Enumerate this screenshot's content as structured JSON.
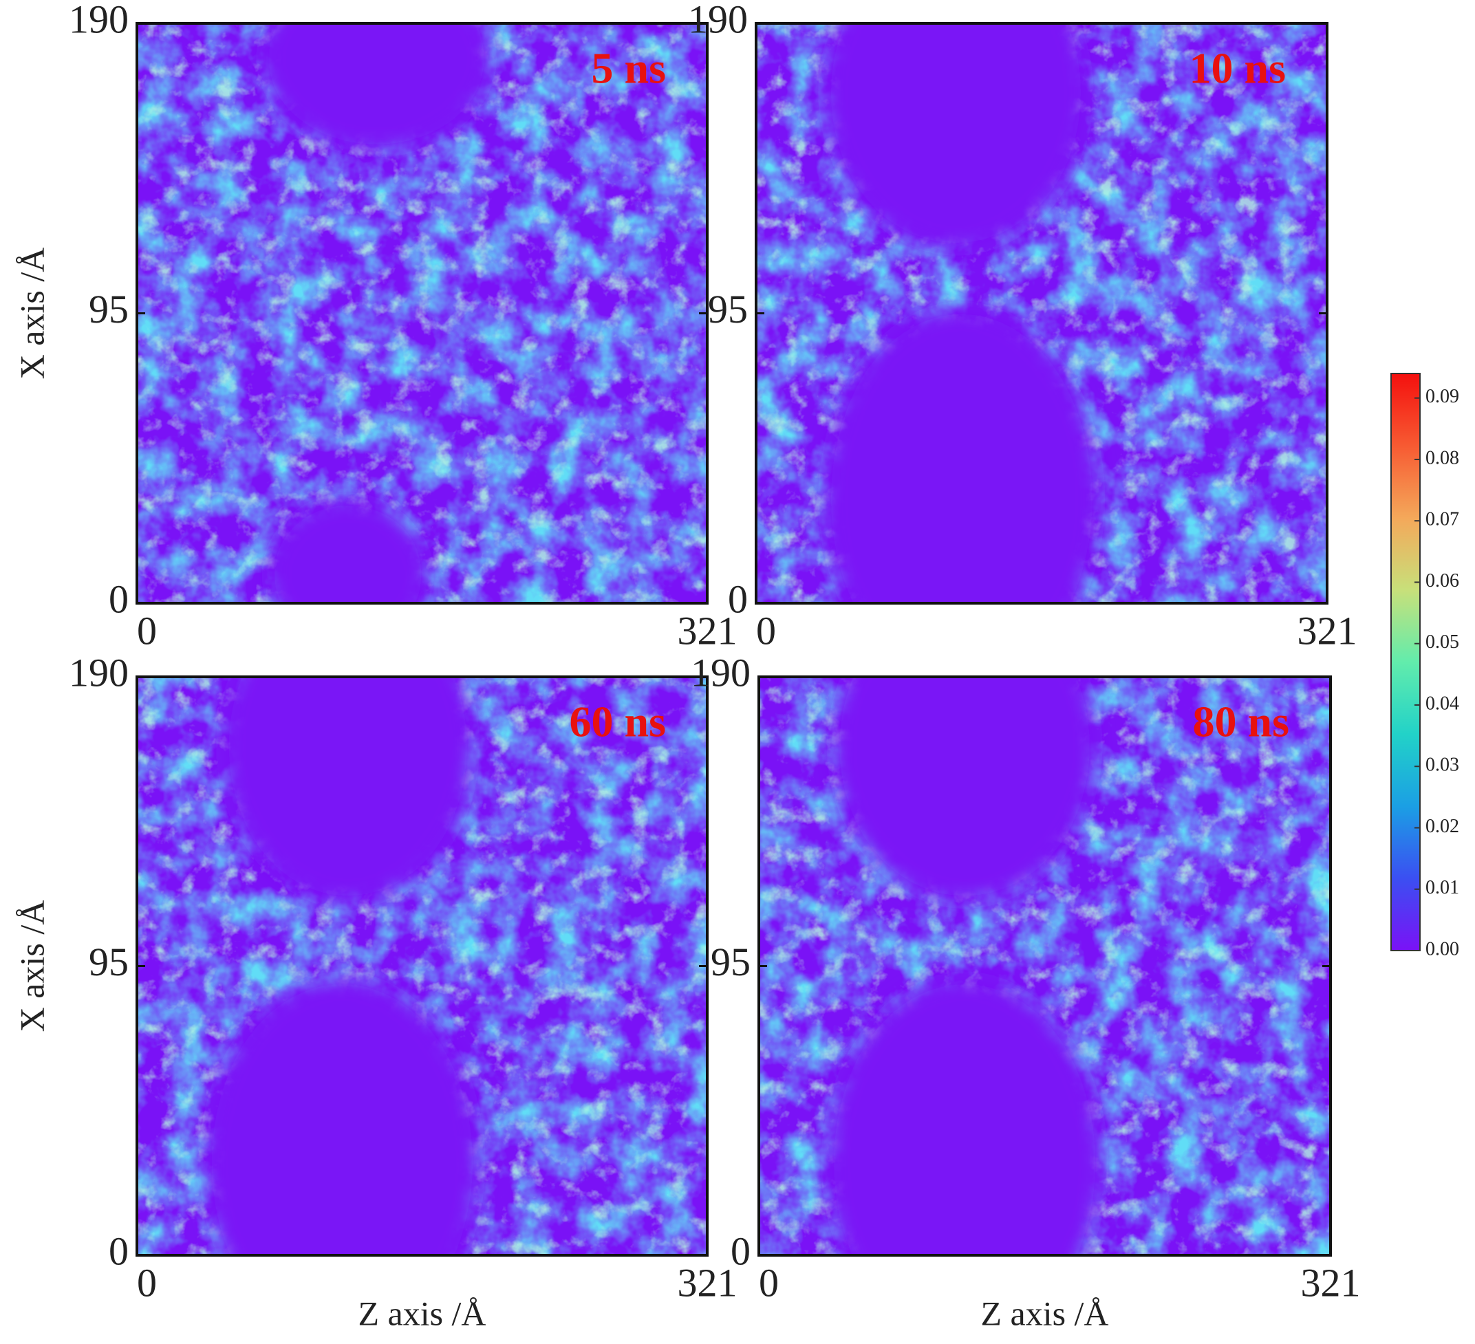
{
  "chart_data": [
    {
      "type": "heatmap",
      "title": "5 ns",
      "ylabel": "X axis /Å",
      "xlim": [
        0,
        321
      ],
      "xticks": [
        0,
        321
      ],
      "ylim": [
        0,
        190
      ],
      "yticks": [
        0,
        95,
        190
      ]
    },
    {
      "type": "heatmap",
      "title": "10 ns",
      "xlim": [
        0,
        321
      ],
      "xticks": [
        0,
        321
      ],
      "ylim": [
        0,
        190
      ],
      "yticks": [
        0,
        95,
        190
      ]
    },
    {
      "type": "heatmap",
      "title": "60 ns",
      "xlabel": "Z axis /Å",
      "ylabel": "X axis /Å",
      "xlim": [
        0,
        321
      ],
      "xticks": [
        0,
        321
      ],
      "ylim": [
        0,
        190
      ],
      "yticks": [
        0,
        95,
        190
      ]
    },
    {
      "type": "heatmap",
      "title": "80 ns",
      "xlabel": "Z axis /Å",
      "xlim": [
        0,
        321
      ],
      "xticks": [
        0,
        321
      ],
      "ylim": [
        0,
        190
      ],
      "yticks": [
        0,
        95,
        190
      ]
    },
    {
      "type": "colorbar",
      "ylim": [
        0,
        0.094
      ],
      "yticks": [
        {
          "value": 0,
          "label": "0.00"
        },
        {
          "value": 0.01,
          "label": "0.01"
        },
        {
          "value": 0.02,
          "label": "0.02"
        },
        {
          "value": 0.03,
          "label": "0.03"
        },
        {
          "value": 0.04,
          "label": "0.04"
        },
        {
          "value": 0.05,
          "label": "0.05"
        },
        {
          "value": 0.06,
          "label": "0.06"
        },
        {
          "value": 0.07,
          "label": "0.07"
        },
        {
          "value": 0.08,
          "label": "0.08"
        },
        {
          "value": 0.09,
          "label": "0.09"
        }
      ],
      "colors": [
        "#7a12f6",
        "#3b4ff2",
        "#1b9fe4",
        "#22d2c8",
        "#62ecac",
        "#c8e07a",
        "#f4a85a",
        "#f75a32",
        "#f4100e"
      ]
    }
  ]
}
